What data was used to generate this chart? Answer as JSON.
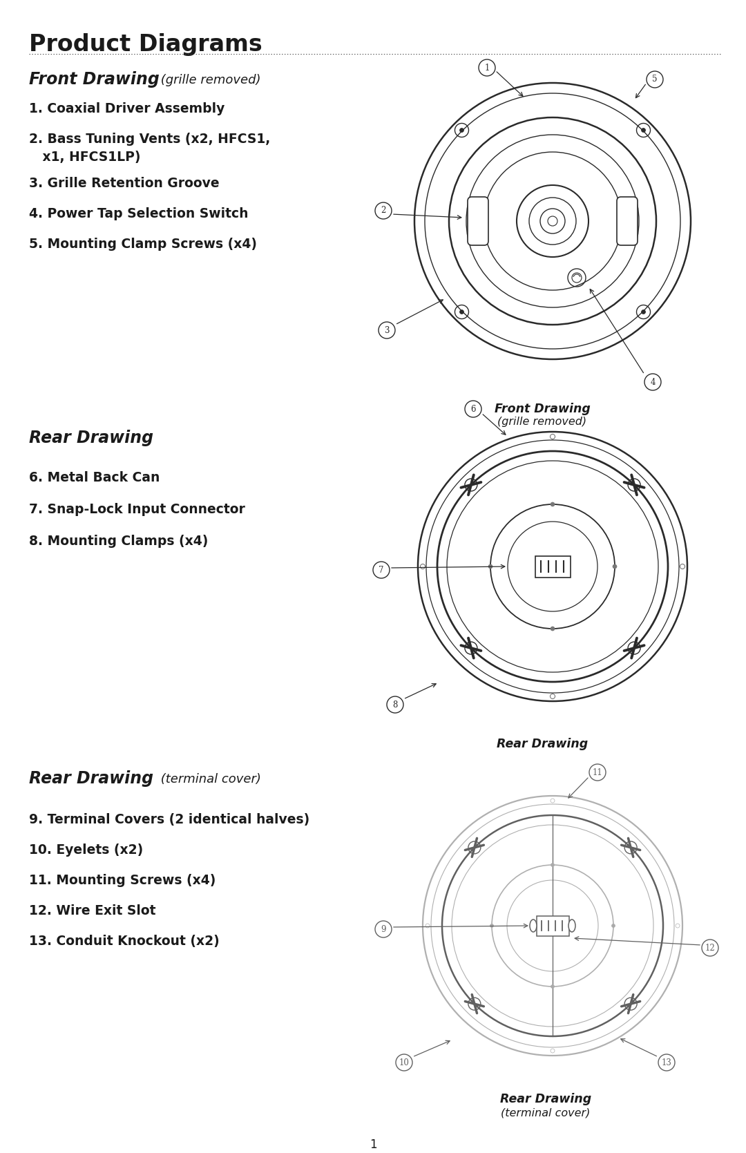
{
  "title": "Product Diagrams",
  "bg_color": "#ffffff",
  "text_color": "#1a1a1a",
  "line_color": "#2a2a2a",
  "section1_heading": "Front Drawing",
  "section1_subheading": " (grille removed)",
  "section2_heading": "Rear Drawing",
  "section3_heading": "Rear Drawing",
  "section3_subheading": " (terminal cover)",
  "section1_caption_bold": "Front Drawing",
  "section1_caption_italic": "(grille removed)",
  "section2_caption": "Rear Drawing",
  "section3_caption_bold": "Rear Drawing",
  "section3_caption_italic": "(terminal cover)",
  "page_number": "1",
  "items1": [
    "1. Coaxial Driver Assembly",
    "2. Bass Tuning Vents (x2, HFCS1,\n    x1, HFCS1LP)",
    "3. Grille Retention Groove",
    "4. Power Tap Selection Switch",
    "5. Mounting Clamp Screws (x4)"
  ],
  "items2": [
    "6. Metal Back Can",
    "7. Snap-Lock Input Connector",
    "8. Mounting Clamps (x4)"
  ],
  "items3": [
    "9. Terminal Covers (2 identical halves)",
    "10. Eyelets (x2)",
    "11. Mounting Screws (x4)",
    "12. Wire Exit Slot",
    "13. Conduit Knockout (x2)"
  ]
}
